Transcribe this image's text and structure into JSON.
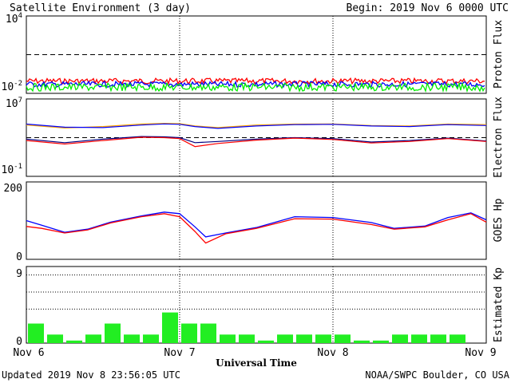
{
  "header": {
    "title": "Satellite Environment (3 day)",
    "begin": "Begin:  2019 Nov 6 0000 UTC"
  },
  "footer": {
    "updated": "Updated 2019 Nov  8 23:56:05 UTC",
    "credit": "NOAA/SWPC Boulder, CO USA"
  },
  "chart_data": [
    {
      "type": "line",
      "title": "",
      "ylabel": "Proton Flux",
      "scale": "log",
      "ylim": [
        0.01,
        10000
      ],
      "y_ticks": [
        {
          "base": "10",
          "exp": "4"
        },
        {
          "base": "10",
          "exp": "-2"
        }
      ],
      "threshold": 10,
      "series": [
        {
          "color": "#ff0000",
          "approx_value": 0.09
        },
        {
          "color": "#0000ff",
          "approx_value": 0.05
        },
        {
          "color": "#00ee00",
          "approx_value": 0.03
        }
      ]
    },
    {
      "type": "line",
      "title": "",
      "ylabel": "Electron Flux",
      "scale": "log",
      "ylim": [
        0.1,
        10000000
      ],
      "y_ticks": [
        {
          "base": "10",
          "exp": "7"
        },
        {
          "base": "10",
          "exp": "-1"
        }
      ],
      "threshold": 1000,
      "x": [
        0,
        0.25,
        0.5,
        0.75,
        0.9,
        1.0,
        1.1,
        1.25,
        1.5,
        1.75,
        2.0,
        2.25,
        2.5,
        2.75,
        3.0
      ],
      "series": [
        {
          "color": "#ffa500",
          "values": [
            20000,
            10000,
            14000,
            25000,
            30000,
            28000,
            16000,
            11000,
            20000,
            25000,
            26000,
            18000,
            16000,
            25000,
            22000
          ]
        },
        {
          "color": "#0000ff",
          "values": [
            25000,
            12000,
            11000,
            20000,
            26000,
            24000,
            14000,
            9000,
            16000,
            22000,
            24000,
            16000,
            14000,
            22000,
            18000
          ]
        },
        {
          "color": "#000080",
          "values": [
            700,
            300,
            700,
            1300,
            1200,
            1000,
            300,
            400,
            700,
            1000,
            800,
            350,
            500,
            900,
            450
          ]
        },
        {
          "color": "#ff0000",
          "values": [
            500,
            220,
            500,
            1100,
            1000,
            800,
            120,
            250,
            550,
            900,
            650,
            280,
            400,
            800,
            400
          ]
        }
      ]
    },
    {
      "type": "line",
      "title": "",
      "ylabel": "GOES Hp",
      "ylim": [
        0,
        200
      ],
      "y_ticks": [
        "200",
        "0"
      ],
      "x": [
        0,
        0.1,
        0.25,
        0.4,
        0.55,
        0.75,
        0.9,
        1.0,
        1.1,
        1.17,
        1.3,
        1.5,
        1.75,
        2.0,
        2.25,
        2.4,
        2.6,
        2.75,
        2.9,
        3.0
      ],
      "series": [
        {
          "color": "#0000ff",
          "values": [
            100,
            88,
            70,
            78,
            96,
            112,
            122,
            118,
            84,
            58,
            68,
            82,
            110,
            108,
            95,
            80,
            86,
            108,
            120,
            102
          ]
        },
        {
          "color": "#ff0000",
          "values": [
            85,
            80,
            68,
            76,
            94,
            110,
            118,
            110,
            72,
            42,
            66,
            80,
            105,
            104,
            90,
            78,
            84,
            102,
            118,
            96
          ]
        }
      ]
    },
    {
      "type": "bar",
      "title": "",
      "ylabel": "Estimated Kp",
      "ylim": [
        0,
        9
      ],
      "y_ticks": [
        "9",
        "0"
      ],
      "gridlines": [
        4,
        6,
        8
      ],
      "bar_color": "#22ee22",
      "values": [
        2.3,
        1,
        0.3,
        1,
        2.3,
        1,
        1,
        3.6,
        2.3,
        2.3,
        1,
        1,
        0.3,
        1,
        1,
        1,
        1,
        0.3,
        0.3,
        1,
        1,
        1,
        1,
        0
      ]
    }
  ],
  "x_axis": {
    "title": "Universal Time",
    "tick_labels": [
      "Nov 6",
      "Nov 7",
      "Nov 8",
      "Nov 9"
    ],
    "range_days": [
      0,
      3
    ]
  }
}
